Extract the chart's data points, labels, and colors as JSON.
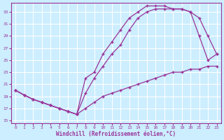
{
  "xlabel": "Windchill (Refroidissement éolien,°C)",
  "bg_color": "#cceeff",
  "grid_color": "#ffffff",
  "line_color": "#993399",
  "xlim": [
    -0.5,
    23.5
  ],
  "ylim": [
    14.5,
    34.5
  ],
  "xticks": [
    0,
    1,
    2,
    3,
    4,
    5,
    6,
    7,
    8,
    9,
    10,
    11,
    12,
    13,
    14,
    15,
    16,
    17,
    18,
    19,
    20,
    21,
    22,
    23
  ],
  "yticks": [
    15,
    17,
    19,
    21,
    23,
    25,
    27,
    29,
    31,
    33
  ],
  "line1_x": [
    0,
    1,
    2,
    3,
    4,
    5,
    6,
    7,
    8,
    9,
    10,
    11,
    12,
    13,
    14,
    15,
    16,
    17,
    18,
    19,
    20,
    21,
    22,
    23
  ],
  "line1_y": [
    20,
    19.2,
    18.5,
    18,
    17.5,
    17,
    16.5,
    16,
    17,
    18,
    19,
    19.5,
    20,
    20.5,
    21,
    21.5,
    22,
    22.5,
    23,
    23,
    23.5,
    23.5,
    24,
    24
  ],
  "line2_x": [
    0,
    1,
    2,
    3,
    4,
    5,
    6,
    7,
    8,
    9,
    10,
    11,
    12,
    13,
    14,
    15,
    16,
    17,
    18,
    19,
    20,
    21,
    22,
    23
  ],
  "line2_y": [
    20,
    19.2,
    18.5,
    18,
    17.5,
    17,
    16.5,
    16,
    19.5,
    22,
    24,
    26,
    27.5,
    30,
    32,
    33,
    33.5,
    33.5,
    33.5,
    33.5,
    33,
    32,
    29,
    26
  ],
  "line3_x": [
    0,
    1,
    2,
    3,
    4,
    5,
    6,
    7,
    8,
    9,
    10,
    11,
    12,
    13,
    14,
    15,
    16,
    17,
    18,
    19,
    20,
    21,
    22,
    23
  ],
  "line3_y": [
    20,
    19.2,
    18.5,
    18,
    17.5,
    17,
    16.5,
    16,
    22,
    23,
    26,
    28,
    30,
    32,
    33,
    34,
    34,
    34,
    33.5,
    33.5,
    33,
    29,
    25,
    26
  ]
}
